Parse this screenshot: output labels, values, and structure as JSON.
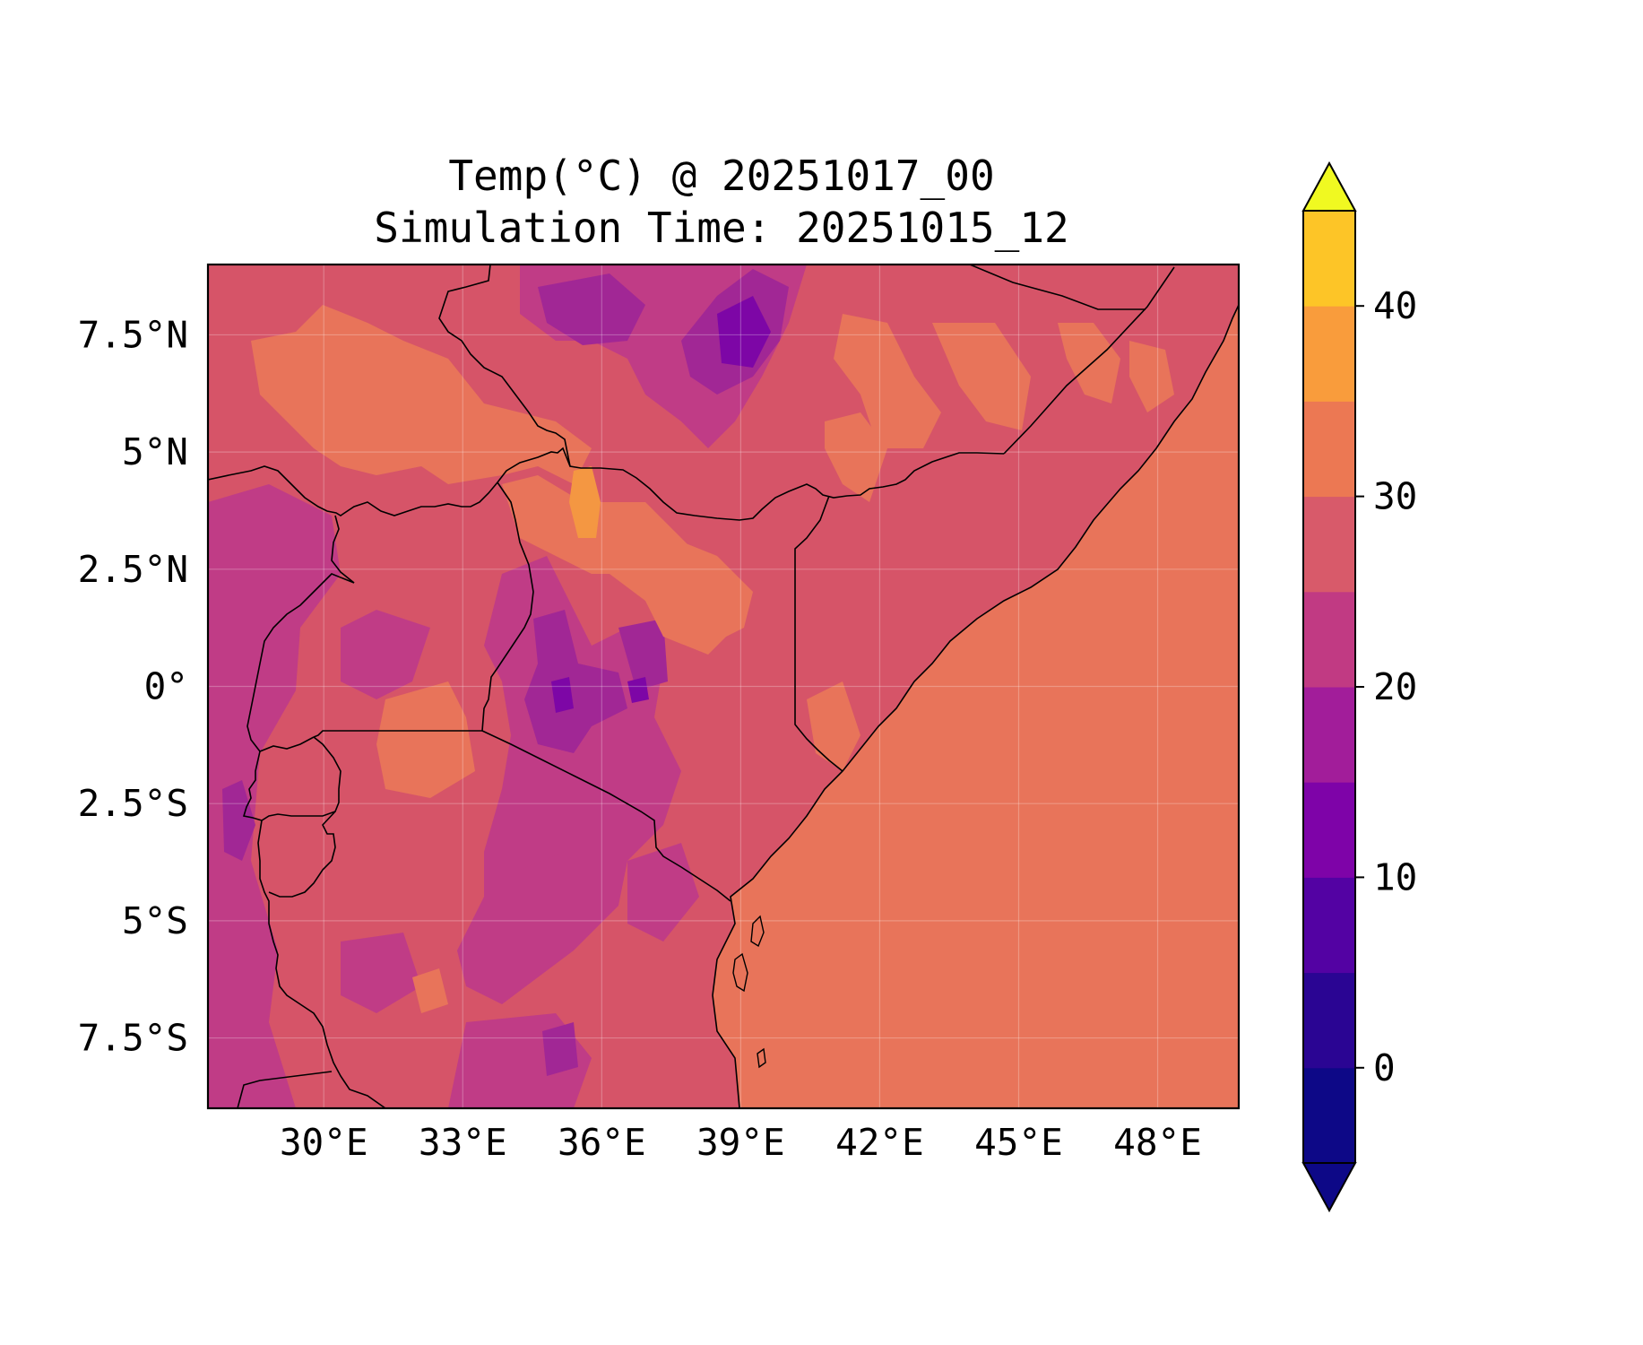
{
  "title": {
    "line1": "Temp(°C) @ 20251017_00",
    "line2": "Simulation Time: 20251015_12"
  },
  "map": {
    "lon_range": [
      27.5,
      49.75
    ],
    "lat_range": [
      -9.0,
      9.0
    ],
    "x_ticks": [
      {
        "lon": 30,
        "label": "30°E"
      },
      {
        "lon": 33,
        "label": "33°E"
      },
      {
        "lon": 36,
        "label": "36°E"
      },
      {
        "lon": 39,
        "label": "39°E"
      },
      {
        "lon": 42,
        "label": "42°E"
      },
      {
        "lon": 45,
        "label": "45°E"
      },
      {
        "lon": 48,
        "label": "48°E"
      }
    ],
    "y_ticks": [
      {
        "lat": 7.5,
        "label": "7.5°N"
      },
      {
        "lat": 5,
        "label": "5°N"
      },
      {
        "lat": 2.5,
        "label": "2.5°N"
      },
      {
        "lat": 0,
        "label": "0°"
      },
      {
        "lat": -2.5,
        "label": "2.5°S"
      },
      {
        "lat": -5,
        "label": "5°S"
      },
      {
        "lat": -7.5,
        "label": "7.5°S"
      }
    ],
    "gridlines": true,
    "colors": {
      "ocean": "#e8745a",
      "land_base": "#d65468",
      "warm_patch": "#e8745a",
      "hot_patch": "#f49742",
      "cool_patch": "#c03c86",
      "cold_patch": "#a12795",
      "colder_patch": "#7d06a6",
      "border": "#000000"
    }
  },
  "colorbar": {
    "label_values": [
      0,
      10,
      20,
      30,
      40
    ],
    "boundaries": [
      -5,
      0,
      5,
      10,
      15,
      20,
      25,
      30,
      35,
      40,
      45
    ],
    "colors": [
      "#0d0887",
      "#2a0593",
      "#5302a3",
      "#7e03a8",
      "#a21d9a",
      "#c13a83",
      "#d85a6a",
      "#ec7853",
      "#f99c3c",
      "#fdc527",
      "#f0f921"
    ],
    "under_color": "#0d0887",
    "over_color": "#f0f921",
    "extend": "both"
  }
}
